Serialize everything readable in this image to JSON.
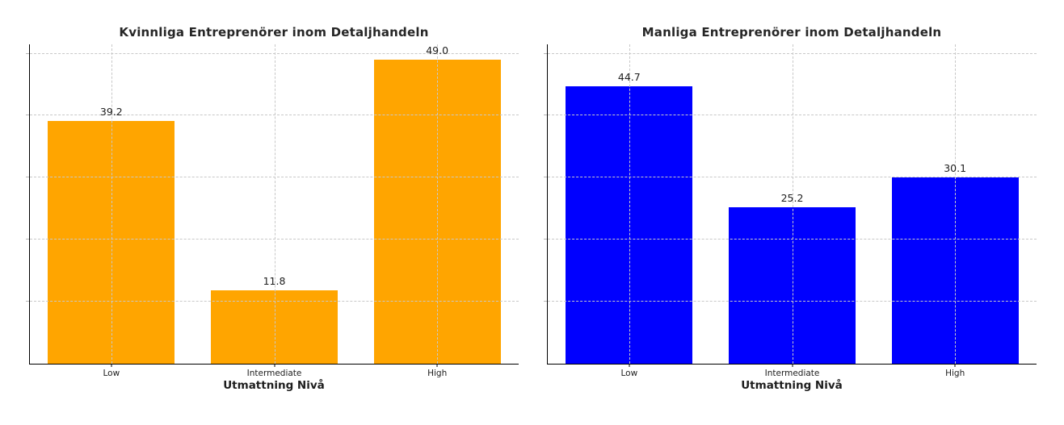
{
  "figure": {
    "background": "#ffffff",
    "axis_color": "#000000",
    "grid_color": "#c8c8c8",
    "text_color": "#1d1d1d"
  },
  "chart_data": [
    {
      "type": "bar",
      "title": "Kvinnliga Entreprenörer inom Detaljhandeln",
      "xlabel": "Utmattning Nivå",
      "ylabel": "",
      "categories": [
        "Low",
        "Intermediate",
        "High"
      ],
      "values": [
        39.2,
        11.8,
        49.0
      ],
      "bar_labels": [
        "39.2",
        "11.8",
        "49.0"
      ],
      "bar_color": "#FFA500",
      "ylim": [
        0,
        51.5
      ],
      "gridlines": [
        10,
        20,
        30,
        40,
        50
      ],
      "grid": "both, dashed, drawn over bars",
      "y_tick_labels": "hidden",
      "legend": "none"
    },
    {
      "type": "bar",
      "title": "Manliga Entreprenörer inom Detaljhandeln",
      "xlabel": "Utmattning Nivå",
      "ylabel": "",
      "categories": [
        "Low",
        "Intermediate",
        "High"
      ],
      "values": [
        44.7,
        25.2,
        30.1
      ],
      "bar_labels": [
        "44.7",
        "25.2",
        "30.1"
      ],
      "bar_color": "#0000FF",
      "ylim": [
        0,
        51.5
      ],
      "gridlines": [
        10,
        20,
        30,
        40,
        50
      ],
      "grid": "both, dashed, drawn over bars",
      "y_tick_labels": "hidden",
      "legend": "none"
    }
  ]
}
